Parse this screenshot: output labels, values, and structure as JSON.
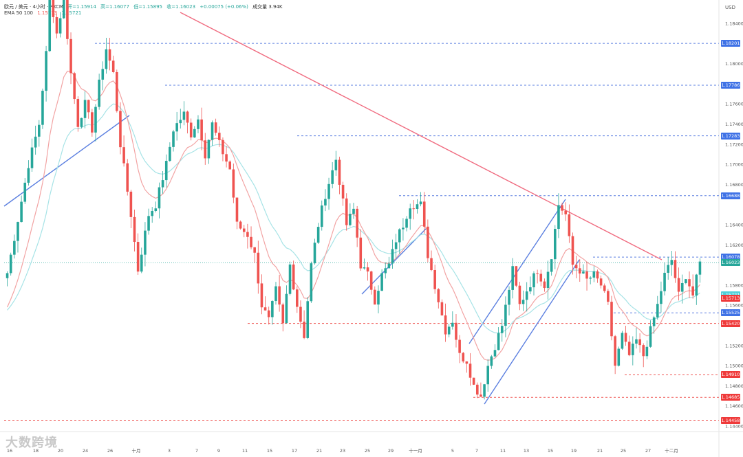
{
  "header": {
    "symbol": "欧元 / 美元 · 4小时 · FXCM",
    "open": "开=1.15914",
    "high": "高=1.16077",
    "low": "低=1.15895",
    "close": "收=1.16023",
    "change": "+0.00075 (+0.06%)",
    "volume": "成交量 3.94K",
    "ema_label": "EMA 50 100",
    "ema50_value": "1.15713",
    "ema100_value": "1.15721"
  },
  "currency": "USD",
  "watermark": "大数跨境",
  "colors": {
    "up": "#26a69a",
    "down": "#ef5350",
    "ema50": "#f2a3a3",
    "ema100": "#a6e3e6",
    "trend_red": "#f06c80",
    "trend_blue": "#5b7fe0",
    "level_blue": "#5b7fe0",
    "level_red": "#ef5350"
  },
  "chart_data": {
    "type": "candlestick",
    "y_axis": {
      "min": 1.144,
      "max": 1.186,
      "ticks": [
        "1.18400",
        "1.18000",
        "1.17600",
        "1.17400",
        "1.17200",
        "1.17000",
        "1.16800",
        "1.16400",
        "1.16200",
        "1.15800",
        "1.15600",
        "1.15200",
        "1.15000",
        "1.14800",
        "1.14600",
        "1.14400"
      ]
    },
    "x_axis": {
      "ticks": [
        "16",
        "18",
        "20",
        "24",
        "26",
        "十月",
        "3",
        "7",
        "9",
        "11",
        "15",
        "17",
        "21",
        "23",
        "25",
        "29",
        "十一月",
        "5",
        "7",
        "11",
        "13",
        "15",
        "19",
        "21",
        "25",
        "27",
        "十二月"
      ]
    },
    "levels_blue": [
      {
        "label": "1.18201",
        "price": 1.18201
      },
      {
        "label": "1.17786",
        "price": 1.17786
      },
      {
        "label": "1.17283",
        "price": 1.17283
      },
      {
        "label": "1.16688",
        "price": 1.16688
      },
      {
        "label": "1.16078",
        "price": 1.16078
      },
      {
        "label": "1.15525",
        "price": 1.15525
      }
    ],
    "levels_red": [
      {
        "label": "1.15420",
        "price": 1.1542
      },
      {
        "label": "1.14910",
        "price": 1.1491
      },
      {
        "label": "1.14685",
        "price": 1.14685
      },
      {
        "label": "1.14458",
        "price": 1.14458
      }
    ],
    "current": {
      "label": "1.16023",
      "price": 1.16023
    },
    "ema100_tag": {
      "label": "1.15721",
      "price": 1.15721
    },
    "ema50_tag": {
      "label": "1.15713",
      "price": 1.15713
    },
    "anchors": [
      [
        0,
        1.1592
      ],
      [
        3,
        1.1645
      ],
      [
        6,
        1.17
      ],
      [
        9,
        1.174
      ],
      [
        11,
        1.181
      ],
      [
        12,
        1.187
      ],
      [
        14,
        1.183
      ],
      [
        16,
        1.1865
      ],
      [
        18,
        1.179
      ],
      [
        20,
        1.174
      ],
      [
        22,
        1.176
      ],
      [
        24,
        1.1735
      ],
      [
        26,
        1.178
      ],
      [
        28,
        1.1815
      ],
      [
        30,
        1.179
      ],
      [
        32,
        1.172
      ],
      [
        35,
        1.165
      ],
      [
        37,
        1.1595
      ],
      [
        40,
        1.165
      ],
      [
        42,
        1.166
      ],
      [
        45,
        1.17
      ],
      [
        47,
        1.1735
      ],
      [
        50,
        1.175
      ],
      [
        52,
        1.173
      ],
      [
        54,
        1.1745
      ],
      [
        56,
        1.171
      ],
      [
        58,
        1.174
      ],
      [
        60,
        1.172
      ],
      [
        63,
        1.1695
      ],
      [
        65,
        1.164
      ],
      [
        68,
        1.163
      ],
      [
        70,
        1.161
      ],
      [
        72,
        1.156
      ],
      [
        74,
        1.1545
      ],
      [
        76,
        1.1575
      ],
      [
        78,
        1.154
      ],
      [
        80,
        1.16
      ],
      [
        82,
        1.156
      ],
      [
        84,
        1.153
      ],
      [
        86,
        1.16
      ],
      [
        88,
        1.164
      ],
      [
        90,
        1.167
      ],
      [
        93,
        1.1705
      ],
      [
        96,
        1.164
      ],
      [
        98,
        1.1655
      ],
      [
        100,
        1.16
      ],
      [
        102,
        1.159
      ],
      [
        104,
        1.1565
      ],
      [
        106,
        1.159
      ],
      [
        108,
        1.16
      ],
      [
        110,
        1.1625
      ],
      [
        112,
        1.164
      ],
      [
        114,
        1.166
      ],
      [
        117,
        1.166
      ],
      [
        119,
        1.161
      ],
      [
        121,
        1.158
      ],
      [
        124,
        1.1535
      ],
      [
        126,
        1.1545
      ],
      [
        128,
        1.151
      ],
      [
        130,
        1.1505
      ],
      [
        132,
        1.148
      ],
      [
        134,
        1.147
      ],
      [
        136,
        1.15
      ],
      [
        138,
        1.152
      ],
      [
        140,
        1.154
      ],
      [
        143,
        1.1595
      ],
      [
        145,
        1.156
      ],
      [
        147,
        1.1575
      ],
      [
        150,
        1.1595
      ],
      [
        152,
        1.158
      ],
      [
        154,
        1.161
      ],
      [
        156,
        1.166
      ],
      [
        158,
        1.165
      ],
      [
        160,
        1.16
      ],
      [
        162,
        1.1595
      ],
      [
        164,
        1.1585
      ],
      [
        166,
        1.159
      ],
      [
        168,
        1.158
      ],
      [
        170,
        1.156
      ],
      [
        172,
        1.15
      ],
      [
        174,
        1.153
      ],
      [
        176,
        1.151
      ],
      [
        178,
        1.1525
      ],
      [
        180,
        1.151
      ],
      [
        182,
        1.1535
      ],
      [
        184,
        1.156
      ],
      [
        186,
        1.159
      ],
      [
        188,
        1.1605
      ],
      [
        190,
        1.157
      ],
      [
        192,
        1.159
      ],
      [
        194,
        1.157
      ],
      [
        196,
        1.1602
      ]
    ]
  }
}
